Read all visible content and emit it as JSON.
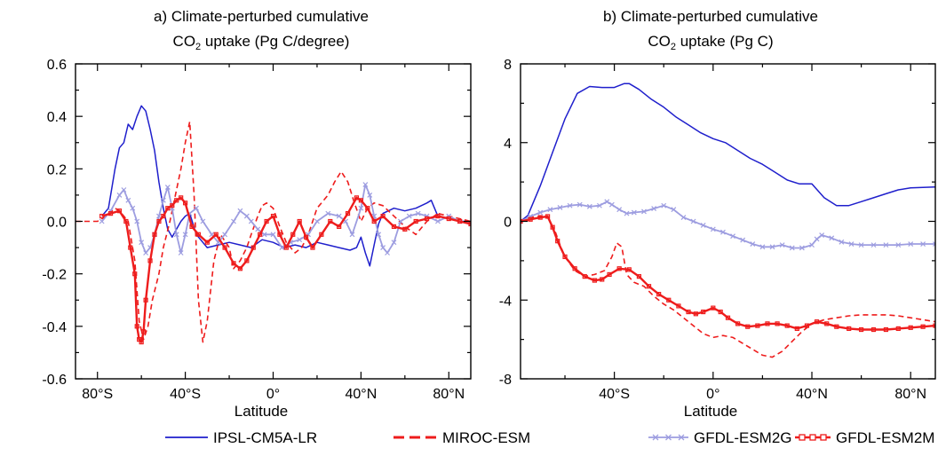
{
  "chart_data": [
    {
      "type": "line",
      "title_line1": "a) Climate-perturbed cumulative",
      "title_line2_pre": "CO",
      "title_line2_sub": "2",
      "title_line2_post": " uptake (Pg C/degree)",
      "xlabel": "Latitude",
      "ylabel": "",
      "xlim": [
        -90,
        90
      ],
      "ylim": [
        -0.6,
        0.6
      ],
      "x_ticks": [
        -80,
        -40,
        0,
        40,
        80
      ],
      "x_tick_labels": [
        "80°S",
        "40°S",
        "0°",
        "40°N",
        "80°N"
      ],
      "y_ticks": [
        -0.6,
        -0.4,
        -0.2,
        0.0,
        0.2,
        0.4,
        0.6
      ],
      "y_tick_labels": [
        "-0.6",
        "-0.4",
        "-0.2",
        "0.0",
        "0.2",
        "0.4",
        "0.6"
      ],
      "series": [
        {
          "name": "IPSL-CM5A-LR",
          "x": [
            -78,
            -75,
            -72,
            -70,
            -68,
            -66,
            -64,
            -62,
            -60,
            -58,
            -56,
            -54,
            -52,
            -50,
            -48,
            -46,
            -44,
            -42,
            -40,
            -38,
            -35,
            -30,
            -25,
            -20,
            -15,
            -10,
            -5,
            0,
            5,
            10,
            15,
            20,
            25,
            30,
            35,
            38,
            40,
            42,
            44,
            46,
            48,
            50,
            55,
            60,
            65,
            70,
            72,
            75,
            80,
            85,
            90
          ],
          "y": [
            0.02,
            0.05,
            0.2,
            0.28,
            0.3,
            0.37,
            0.35,
            0.4,
            0.44,
            0.42,
            0.35,
            0.27,
            0.15,
            0.05,
            -0.03,
            -0.06,
            -0.03,
            0.0,
            0.02,
            0.03,
            -0.05,
            -0.1,
            -0.09,
            -0.08,
            -0.09,
            -0.1,
            -0.07,
            -0.08,
            -0.1,
            -0.09,
            -0.1,
            -0.08,
            -0.09,
            -0.1,
            -0.11,
            -0.1,
            -0.06,
            -0.12,
            -0.17,
            -0.09,
            -0.01,
            0.03,
            0.05,
            0.04,
            0.05,
            0.07,
            0.08,
            0.02,
            0.01,
            0.0,
            0.0
          ]
        },
        {
          "name": "MIROC-ESM",
          "x": [
            -90,
            -80,
            -76,
            -72,
            -70,
            -66,
            -63,
            -61,
            -59,
            -57,
            -55,
            -52,
            -50,
            -47,
            -44,
            -42,
            -40,
            -38,
            -36,
            -34,
            -32,
            -30,
            -27,
            -24,
            -20,
            -18,
            -15,
            -12,
            -10,
            -7,
            -5,
            -3,
            0,
            3,
            6,
            10,
            13,
            16,
            20,
            25,
            28,
            31,
            34,
            37,
            40,
            43,
            46,
            50,
            55,
            60,
            65,
            70,
            75,
            80,
            85,
            90
          ],
          "y": [
            0.0,
            0.0,
            0.02,
            0.05,
            0.04,
            0.0,
            -0.15,
            -0.38,
            -0.45,
            -0.4,
            -0.3,
            -0.2,
            -0.1,
            0.0,
            0.12,
            0.2,
            0.3,
            0.38,
            0.1,
            -0.3,
            -0.46,
            -0.38,
            -0.15,
            -0.05,
            -0.1,
            -0.18,
            -0.15,
            -0.1,
            -0.05,
            0.02,
            0.06,
            0.07,
            0.05,
            -0.02,
            -0.08,
            -0.12,
            -0.1,
            -0.05,
            0.05,
            0.1,
            0.15,
            0.19,
            0.15,
            0.07,
            0.0,
            0.05,
            0.07,
            0.06,
            0.02,
            -0.02,
            -0.05,
            0.0,
            0.03,
            0.02,
            0.01,
            0.0
          ]
        },
        {
          "name": "GFDL-ESM2G",
          "x": [
            -78,
            -74,
            -70,
            -68,
            -66,
            -64,
            -62,
            -60,
            -58,
            -56,
            -54,
            -52,
            -50,
            -48,
            -46,
            -44,
            -42,
            -40,
            -38,
            -35,
            -32,
            -28,
            -25,
            -22,
            -18,
            -15,
            -12,
            -10,
            -7,
            -4,
            0,
            4,
            8,
            12,
            16,
            20,
            25,
            30,
            33,
            36,
            40,
            42,
            44,
            46,
            48,
            50,
            52,
            55,
            58,
            62,
            66,
            70,
            75,
            80,
            85,
            90
          ],
          "y": [
            0.0,
            0.04,
            0.1,
            0.12,
            0.08,
            0.05,
            0.0,
            -0.08,
            -0.12,
            -0.1,
            -0.05,
            0.02,
            0.08,
            0.13,
            0.05,
            -0.05,
            -0.12,
            -0.05,
            0.03,
            0.05,
            0.0,
            -0.05,
            -0.08,
            -0.05,
            0.0,
            0.04,
            0.02,
            0.0,
            -0.03,
            -0.05,
            -0.05,
            -0.1,
            -0.08,
            -0.07,
            -0.05,
            0.0,
            0.03,
            0.02,
            0.0,
            -0.05,
            0.05,
            0.14,
            0.1,
            0.02,
            -0.05,
            -0.1,
            -0.12,
            -0.08,
            0.0,
            0.02,
            0.03,
            0.02,
            0.0,
            0.02,
            0.0,
            -0.01
          ]
        },
        {
          "name": "GFDL-ESM2M",
          "x": [
            -78,
            -74,
            -70,
            -67,
            -65,
            -63,
            -62,
            -61,
            -60,
            -59,
            -58,
            -56,
            -54,
            -52,
            -50,
            -48,
            -46,
            -44,
            -42,
            -40,
            -37,
            -34,
            -30,
            -26,
            -22,
            -18,
            -15,
            -12,
            -9,
            -6,
            -3,
            0,
            3,
            6,
            9,
            12,
            15,
            18,
            22,
            26,
            30,
            34,
            38,
            40,
            43,
            46,
            50,
            55,
            60,
            65,
            70,
            75,
            80,
            85,
            90
          ],
          "y": [
            0.02,
            0.03,
            0.04,
            0.0,
            -0.1,
            -0.2,
            -0.4,
            -0.45,
            -0.46,
            -0.42,
            -0.3,
            -0.15,
            -0.05,
            0.0,
            0.02,
            0.05,
            0.06,
            0.08,
            0.09,
            0.07,
            -0.02,
            -0.05,
            -0.08,
            -0.05,
            -0.1,
            -0.16,
            -0.18,
            -0.15,
            -0.1,
            -0.05,
            0.0,
            0.02,
            -0.05,
            -0.1,
            -0.05,
            0.0,
            -0.06,
            -0.1,
            -0.05,
            0.0,
            -0.02,
            0.03,
            0.09,
            0.08,
            0.05,
            0.0,
            0.02,
            -0.02,
            -0.03,
            0.0,
            0.01,
            0.02,
            0.01,
            0.0,
            -0.01
          ]
        }
      ]
    },
    {
      "type": "line",
      "title_line1": "b) Climate-perturbed cumulative",
      "title_line2_pre": "CO",
      "title_line2_sub": "2",
      "title_line2_post": " uptake (Pg C)",
      "xlabel": "Latitude",
      "ylabel": "",
      "xlim": [
        -78,
        90
      ],
      "ylim": [
        -8,
        8
      ],
      "x_ticks": [
        -40,
        0,
        40,
        80
      ],
      "x_tick_labels": [
        "40°S",
        "0°",
        "40°N",
        "80°N"
      ],
      "y_ticks": [
        -8,
        -4,
        0,
        4,
        8
      ],
      "y_tick_labels": [
        "-8",
        "-4",
        "0",
        "4",
        "8"
      ],
      "series": [
        {
          "name": "IPSL-CM5A-LR",
          "x": [
            -78,
            -75,
            -70,
            -65,
            -60,
            -55,
            -50,
            -45,
            -40,
            -36,
            -34,
            -30,
            -25,
            -20,
            -15,
            -10,
            -5,
            0,
            5,
            10,
            15,
            20,
            25,
            30,
            35,
            40,
            45,
            50,
            55,
            60,
            65,
            70,
            75,
            80,
            85,
            90
          ],
          "y": [
            0.0,
            0.3,
            1.8,
            3.5,
            5.2,
            6.5,
            6.85,
            6.8,
            6.8,
            7.0,
            7.0,
            6.7,
            6.2,
            5.8,
            5.3,
            4.9,
            4.5,
            4.2,
            4.0,
            3.6,
            3.2,
            2.9,
            2.5,
            2.1,
            1.9,
            1.9,
            1.2,
            0.8,
            0.8,
            1.0,
            1.2,
            1.4,
            1.6,
            1.7,
            1.72,
            1.75
          ]
        },
        {
          "name": "MIROC-ESM",
          "x": [
            -78,
            -74,
            -70,
            -67,
            -64,
            -62,
            -60,
            -56,
            -52,
            -48,
            -44,
            -41,
            -39,
            -37,
            -35,
            -32,
            -28,
            -24,
            -20,
            -16,
            -12,
            -8,
            -4,
            0,
            4,
            8,
            12,
            16,
            20,
            24,
            28,
            32,
            36,
            40,
            45,
            50,
            55,
            60,
            65,
            70,
            75,
            80,
            85,
            90
          ],
          "y": [
            0.0,
            0.2,
            0.25,
            0.2,
            -0.5,
            -1.2,
            -1.8,
            -2.5,
            -2.8,
            -2.7,
            -2.5,
            -1.8,
            -1.1,
            -1.3,
            -2.7,
            -3.1,
            -3.3,
            -3.8,
            -4.2,
            -4.5,
            -4.9,
            -5.3,
            -5.7,
            -5.9,
            -5.8,
            -5.9,
            -6.2,
            -6.5,
            -6.8,
            -6.9,
            -6.6,
            -6.1,
            -5.6,
            -5.2,
            -5.0,
            -4.9,
            -4.8,
            -4.75,
            -4.75,
            -4.75,
            -4.8,
            -4.9,
            -5.0,
            -5.1
          ]
        },
        {
          "name": "GFDL-ESM2G",
          "x": [
            -78,
            -74,
            -70,
            -66,
            -62,
            -58,
            -54,
            -50,
            -46,
            -43,
            -41,
            -38,
            -35,
            -32,
            -28,
            -24,
            -20,
            -16,
            -12,
            -8,
            -4,
            0,
            4,
            8,
            12,
            16,
            20,
            24,
            28,
            32,
            36,
            40,
            42,
            44,
            48,
            52,
            56,
            60,
            65,
            70,
            75,
            80,
            85,
            90
          ],
          "y": [
            0.0,
            0.25,
            0.45,
            0.6,
            0.7,
            0.8,
            0.85,
            0.75,
            0.8,
            1.0,
            0.85,
            0.6,
            0.4,
            0.45,
            0.5,
            0.65,
            0.8,
            0.6,
            0.2,
            0.0,
            -0.2,
            -0.4,
            -0.55,
            -0.75,
            -0.95,
            -1.15,
            -1.3,
            -1.3,
            -1.2,
            -1.35,
            -1.35,
            -1.2,
            -0.9,
            -0.7,
            -0.85,
            -1.05,
            -1.15,
            -1.2,
            -1.2,
            -1.2,
            -1.2,
            -1.15,
            -1.15,
            -1.15
          ]
        },
        {
          "name": "GFDL-ESM2M",
          "x": [
            -78,
            -74,
            -70,
            -67,
            -65,
            -63,
            -60,
            -56,
            -52,
            -48,
            -45,
            -42,
            -38,
            -34,
            -30,
            -26,
            -22,
            -18,
            -14,
            -10,
            -7,
            -4,
            0,
            3,
            6,
            10,
            14,
            18,
            22,
            26,
            30,
            34,
            38,
            42,
            46,
            50,
            55,
            60,
            65,
            70,
            75,
            80,
            85,
            90
          ],
          "y": [
            0.0,
            0.1,
            0.2,
            0.25,
            -0.3,
            -1.0,
            -1.8,
            -2.4,
            -2.8,
            -3.0,
            -2.95,
            -2.7,
            -2.4,
            -2.45,
            -2.8,
            -3.3,
            -3.7,
            -4.0,
            -4.3,
            -4.6,
            -4.7,
            -4.6,
            -4.4,
            -4.6,
            -4.9,
            -5.2,
            -5.35,
            -5.3,
            -5.2,
            -5.2,
            -5.3,
            -5.45,
            -5.3,
            -5.1,
            -5.2,
            -5.35,
            -5.45,
            -5.5,
            -5.5,
            -5.5,
            -5.45,
            -5.4,
            -5.35,
            -5.3
          ]
        }
      ]
    }
  ],
  "legend": {
    "placement": "bottom",
    "items": [
      {
        "label": "IPSL-CM5A-LR",
        "color": "#1f1fcc",
        "style": "solid"
      },
      {
        "label": "MIROC-ESM",
        "color": "#ee1c1c",
        "style": "dashed"
      },
      {
        "label": "GFDL-ESM2G",
        "color": "#9d9de0",
        "style": "x-marker"
      },
      {
        "label": "GFDL-ESM2M",
        "color": "#ee1c1c",
        "style": "square-marker"
      }
    ]
  },
  "series_style": {
    "IPSL-CM5A-LR": {
      "color": "#1f1fcc",
      "dash": "",
      "marker": "none"
    },
    "MIROC-ESM": {
      "color": "#ee1c1c",
      "dash": "6,4",
      "marker": "none"
    },
    "GFDL-ESM2G": {
      "color": "#9d9de0",
      "dash": "",
      "marker": "x"
    },
    "GFDL-ESM2M": {
      "color": "#ee1c1c",
      "dash": "",
      "marker": "square"
    }
  }
}
